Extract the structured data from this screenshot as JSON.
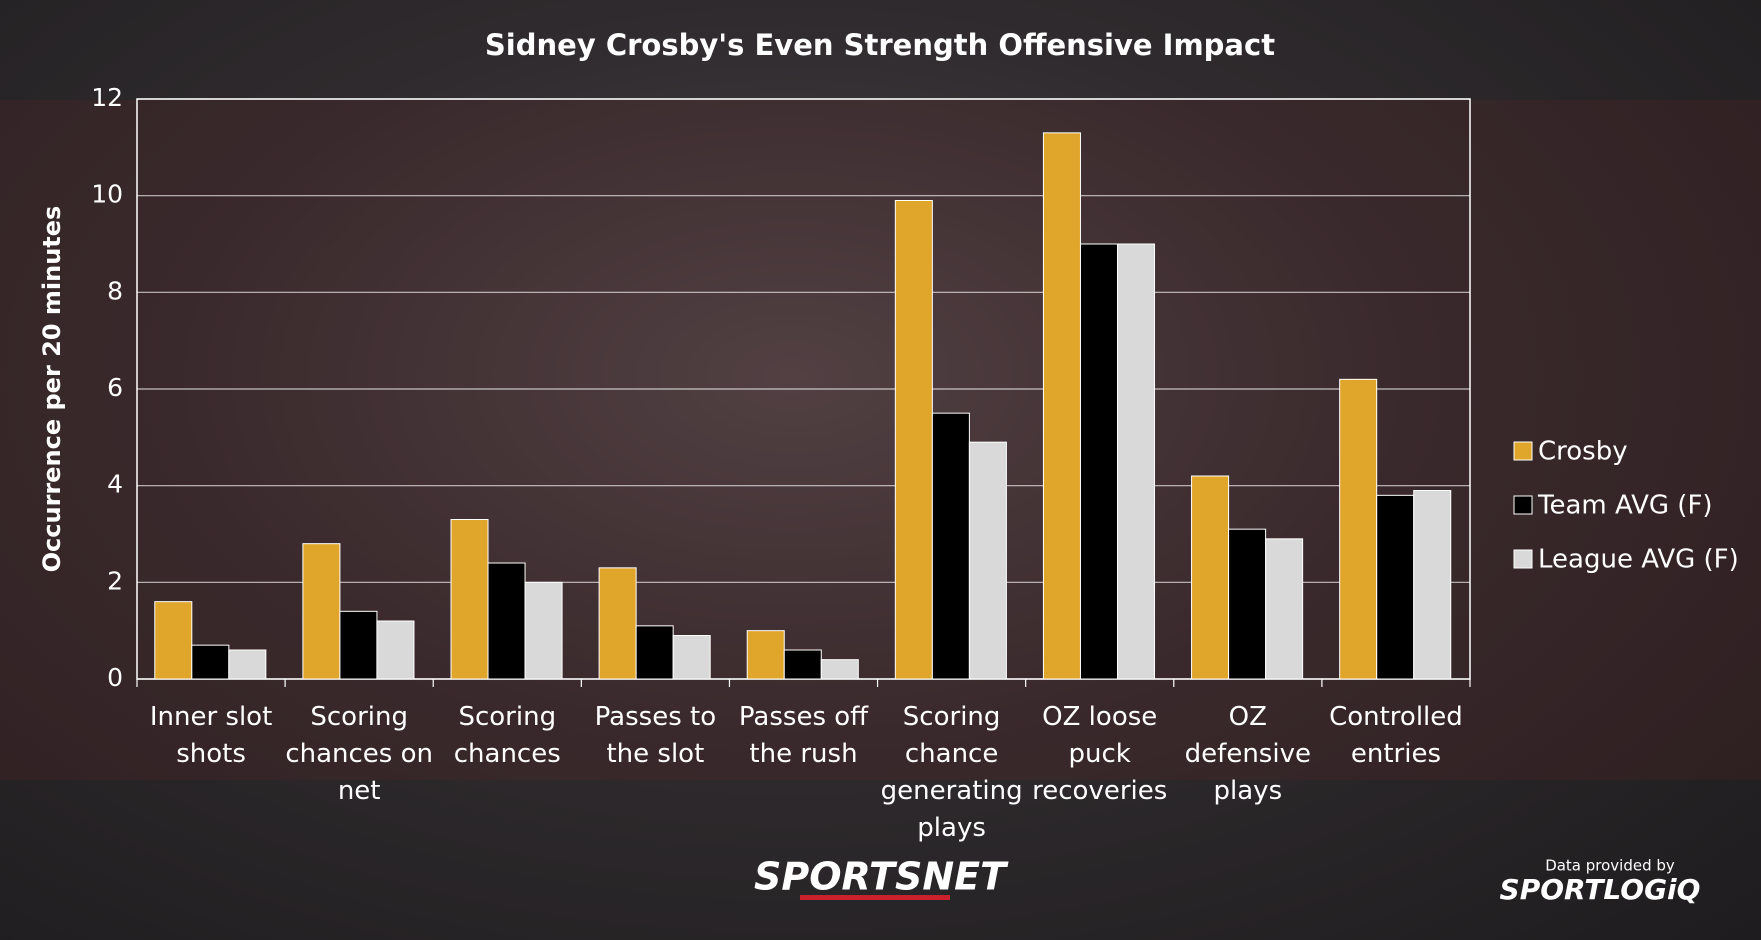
{
  "chart_data": {
    "type": "bar",
    "title": "Sidney Crosby's Even Strength Offensive Impact",
    "y_label": "Occurrence per 20 minutes",
    "categories": [
      "Inner slot shots",
      "Scoring chances on net",
      "Scoring chances",
      "Passes to the slot",
      "Passes off the rush",
      "Scoring chance generating plays",
      "OZ loose puck recoveries",
      "OZ defensive plays",
      "Controlled entries"
    ],
    "series": [
      {
        "name": "Crosby",
        "color": "#e0a52b",
        "values": [
          1.6,
          2.8,
          3.3,
          2.3,
          1.0,
          9.9,
          11.3,
          4.2,
          6.2
        ]
      },
      {
        "name": "Team AVG (F)",
        "color": "#000000",
        "values": [
          0.7,
          1.4,
          2.4,
          1.1,
          0.6,
          5.5,
          9.0,
          3.1,
          3.8
        ]
      },
      {
        "name": "League AVG (F)",
        "color": "#d9d9d9",
        "values": [
          0.6,
          1.2,
          2.0,
          0.9,
          0.4,
          4.9,
          9.0,
          2.9,
          3.9
        ]
      }
    ],
    "ylim": [
      0,
      12
    ],
    "yticks": [
      0,
      2,
      4,
      6,
      8,
      10,
      12
    ],
    "grid": true,
    "legend": "right"
  },
  "branding": {
    "logo": "SPORTSNET",
    "credit": "Data provided by",
    "source": "SPORTLOGiQ"
  }
}
